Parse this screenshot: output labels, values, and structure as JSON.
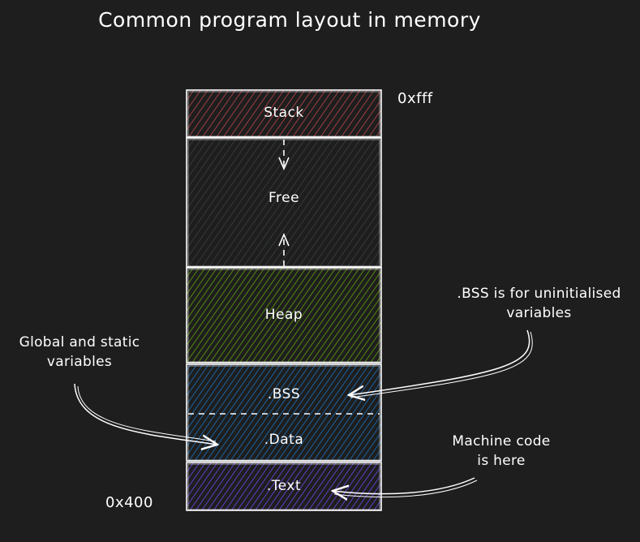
{
  "title": "Common program layout in memory",
  "segments": {
    "stack": {
      "label": "Stack",
      "color": "#c0454a"
    },
    "free": {
      "label": "Free",
      "color": "#343a40"
    },
    "heap": {
      "label": "Heap",
      "color": "#5c940d"
    },
    "bss": {
      "label": ".BSS",
      "color": "#1971c2"
    },
    "data": {
      "label": ".Data",
      "color": "#1971c2"
    },
    "text": {
      "label": ".Text",
      "color": "#6741d9"
    }
  },
  "addresses": {
    "top": "0xfff",
    "bottom": "0x400"
  },
  "annotations": {
    "bss_line1": ".BSS is for uninitialised",
    "bss_line2": "variables",
    "global_line1": "Global and static",
    "global_line2": "variables",
    "machine_line1": "Machine code",
    "machine_line2": "is here"
  }
}
